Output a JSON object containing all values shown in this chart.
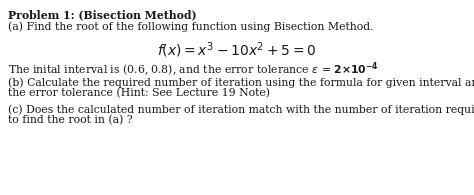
{
  "title": "Problem 1: (Bisection Method)",
  "line_a": "(a) Find the root of the following function using Bisection Method.",
  "formula": "$f(x) = x^3 - 10x^2 + 5 = 0$",
  "line_interval": "The inital interval is (0.6, 0.8), and the error tolerance $\\epsilon$ = $\\mathbf{2{\\times}10^{-4}}$",
  "line_b1": "(b) Calculate the required number of iteration using the formula for given interval and",
  "line_b2": "the error tolerance (Hint: See Lecture 19 Note)",
  "line_c1": "(c) Does the calculated number of iteration match with the number of iteration required",
  "line_c2": "to find the root in (a) ?",
  "background_color": "#ffffff",
  "text_color": "#1a1a1a",
  "font_size": 7.8,
  "formula_font_size": 10.0
}
